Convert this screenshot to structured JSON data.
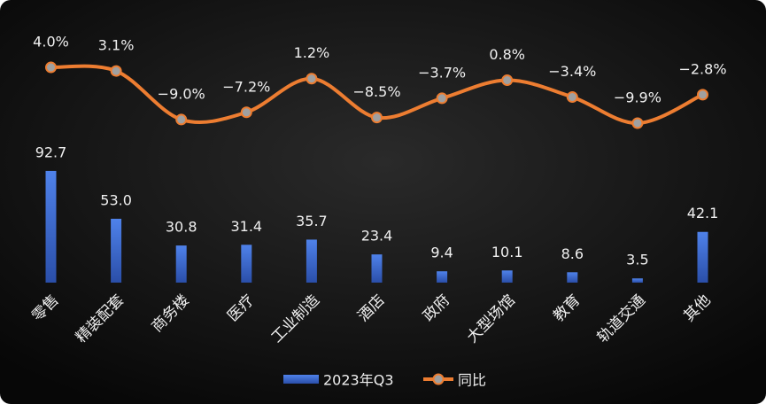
{
  "chart_data": {
    "type": "bar_line",
    "categories": [
      "零售",
      "精装配套",
      "商务楼",
      "医疗",
      "工业制造",
      "酒店",
      "政府",
      "大型场馆",
      "教育",
      "轨道交通",
      "其他"
    ],
    "series": [
      {
        "name": "2023年Q3",
        "type": "bar",
        "color": "#4a7be0",
        "values": [
          92.7,
          53.0,
          30.8,
          31.4,
          35.7,
          23.4,
          9.4,
          10.1,
          8.6,
          3.5,
          42.1
        ],
        "value_labels": [
          "92.7",
          "53.0",
          "30.8",
          "31.4",
          "35.7",
          "23.4",
          "9.4",
          "10.1",
          "8.6",
          "3.5",
          "42.1"
        ]
      },
      {
        "name": "同比",
        "type": "line",
        "axis": "y2",
        "color": "#ed7d31",
        "values": [
          4.0,
          3.1,
          -9.0,
          -7.2,
          1.2,
          -8.5,
          -3.7,
          0.8,
          -3.4,
          -9.9,
          -2.8
        ],
        "value_labels": [
          "4.0%",
          "3.1%",
          "−9.0%",
          "−7.2%",
          "1.2%",
          "−8.5%",
          "−3.7%",
          "0.8%",
          "−3.4%",
          "−9.9%",
          "−2.8%"
        ]
      }
    ],
    "ylim": [
      0,
      100
    ],
    "y2lim": [
      -12,
      6
    ],
    "legend": "bottom"
  }
}
